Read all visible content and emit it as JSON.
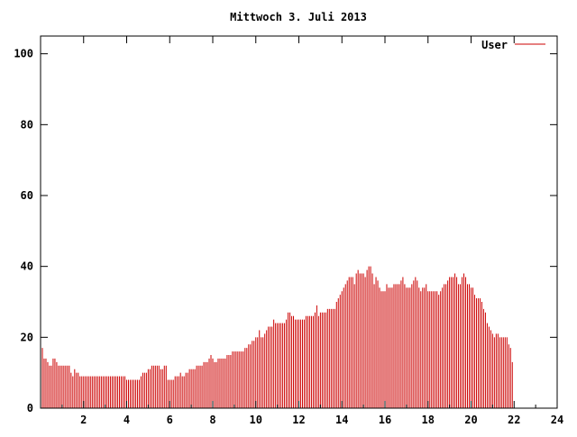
{
  "chart_data": {
    "type": "bar",
    "title": "Mittwoch 3. Juli 2013",
    "xlabel": "",
    "ylabel": "",
    "xlim": [
      0,
      24
    ],
    "ylim": [
      0,
      105
    ],
    "x_ticks": [
      2,
      4,
      6,
      8,
      10,
      12,
      14,
      16,
      18,
      20,
      22,
      24
    ],
    "y_ticks": [
      0,
      20,
      40,
      60,
      80,
      100
    ],
    "grid": false,
    "legend_position": "top-right",
    "bar_color": "#cc0000",
    "series": [
      {
        "name": "User",
        "step_minutes": 5,
        "values": [
          16,
          17,
          14,
          14,
          13,
          12,
          12,
          14,
          14,
          13,
          12,
          12,
          12,
          12,
          12,
          12,
          12,
          10,
          9,
          11,
          10,
          10,
          9,
          9,
          9,
          9,
          9,
          9,
          9,
          9,
          9,
          9,
          9,
          9,
          9,
          9,
          9,
          9,
          9,
          9,
          9,
          9,
          9,
          9,
          9,
          9,
          9,
          9,
          8,
          8,
          8,
          8,
          8,
          8,
          8,
          8,
          9,
          10,
          10,
          10,
          11,
          11,
          12,
          12,
          12,
          12,
          12,
          11,
          11,
          12,
          12,
          8,
          8,
          8,
          8,
          9,
          9,
          9,
          10,
          9,
          9,
          10,
          10,
          11,
          11,
          11,
          11,
          12,
          12,
          12,
          12,
          13,
          13,
          13,
          14,
          15,
          14,
          13,
          13,
          14,
          14,
          14,
          14,
          14,
          15,
          15,
          15,
          16,
          16,
          16,
          16,
          16,
          16,
          16,
          17,
          17,
          18,
          18,
          19,
          19,
          20,
          20,
          22,
          20,
          20,
          21,
          22,
          23,
          23,
          23,
          25,
          24,
          24,
          24,
          24,
          24,
          24,
          25,
          27,
          27,
          26,
          26,
          25,
          25,
          25,
          25,
          25,
          25,
          26,
          26,
          26,
          26,
          26,
          27,
          29,
          26,
          27,
          27,
          27,
          27,
          28,
          28,
          28,
          28,
          28,
          30,
          31,
          32,
          33,
          34,
          35,
          36,
          37,
          37,
          37,
          35,
          38,
          39,
          38,
          38,
          38,
          37,
          39,
          40,
          40,
          38,
          35,
          37,
          36,
          34,
          33,
          33,
          33,
          35,
          34,
          34,
          34,
          35,
          35,
          35,
          35,
          36,
          37,
          35,
          34,
          34,
          34,
          35,
          36,
          37,
          36,
          34,
          33,
          34,
          34,
          35,
          33,
          33,
          33,
          33,
          33,
          33,
          32,
          33,
          34,
          35,
          35,
          36,
          37,
          37,
          37,
          38,
          37,
          35,
          35,
          37,
          38,
          37,
          35,
          35,
          34,
          34,
          32,
          31,
          31,
          31,
          30,
          28,
          27,
          24,
          23,
          22,
          21,
          20,
          21,
          21,
          20,
          20,
          20,
          20,
          20,
          18,
          17,
          13
        ]
      }
    ]
  }
}
